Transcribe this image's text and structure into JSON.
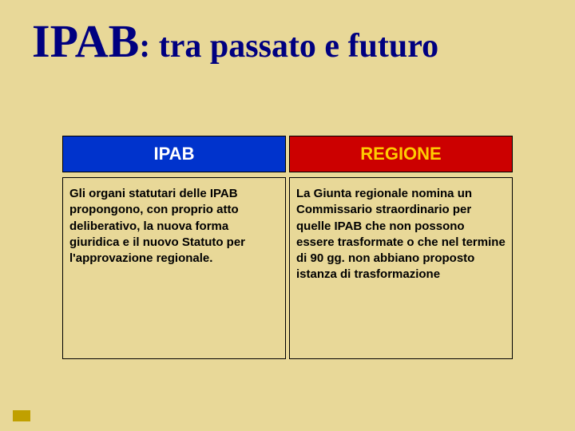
{
  "title": {
    "big": "IPAB",
    "rest": ": tra passato e futuro"
  },
  "columns": [
    {
      "header": "IPAB",
      "header_bg": "#0033cc",
      "header_fg": "#ffffff",
      "body": "Gli organi statutari delle IPAB  propongono, con proprio atto deliberativo, la nuova forma giuridica e il nuovo Statuto per l'approvazione regionale."
    },
    {
      "header": "REGIONE",
      "header_bg": "#cc0000",
      "header_fg": "#ffcc00",
      "body": "La Giunta regionale nomina un Commissario straordinario per quelle IPAB che non possono essere trasformate o che nel termine di 90 gg. non abbiano proposto istanza di trasformazione"
    }
  ],
  "colors": {
    "background": "#e8d898",
    "title_color": "#000080",
    "accent": "#c0a000"
  }
}
